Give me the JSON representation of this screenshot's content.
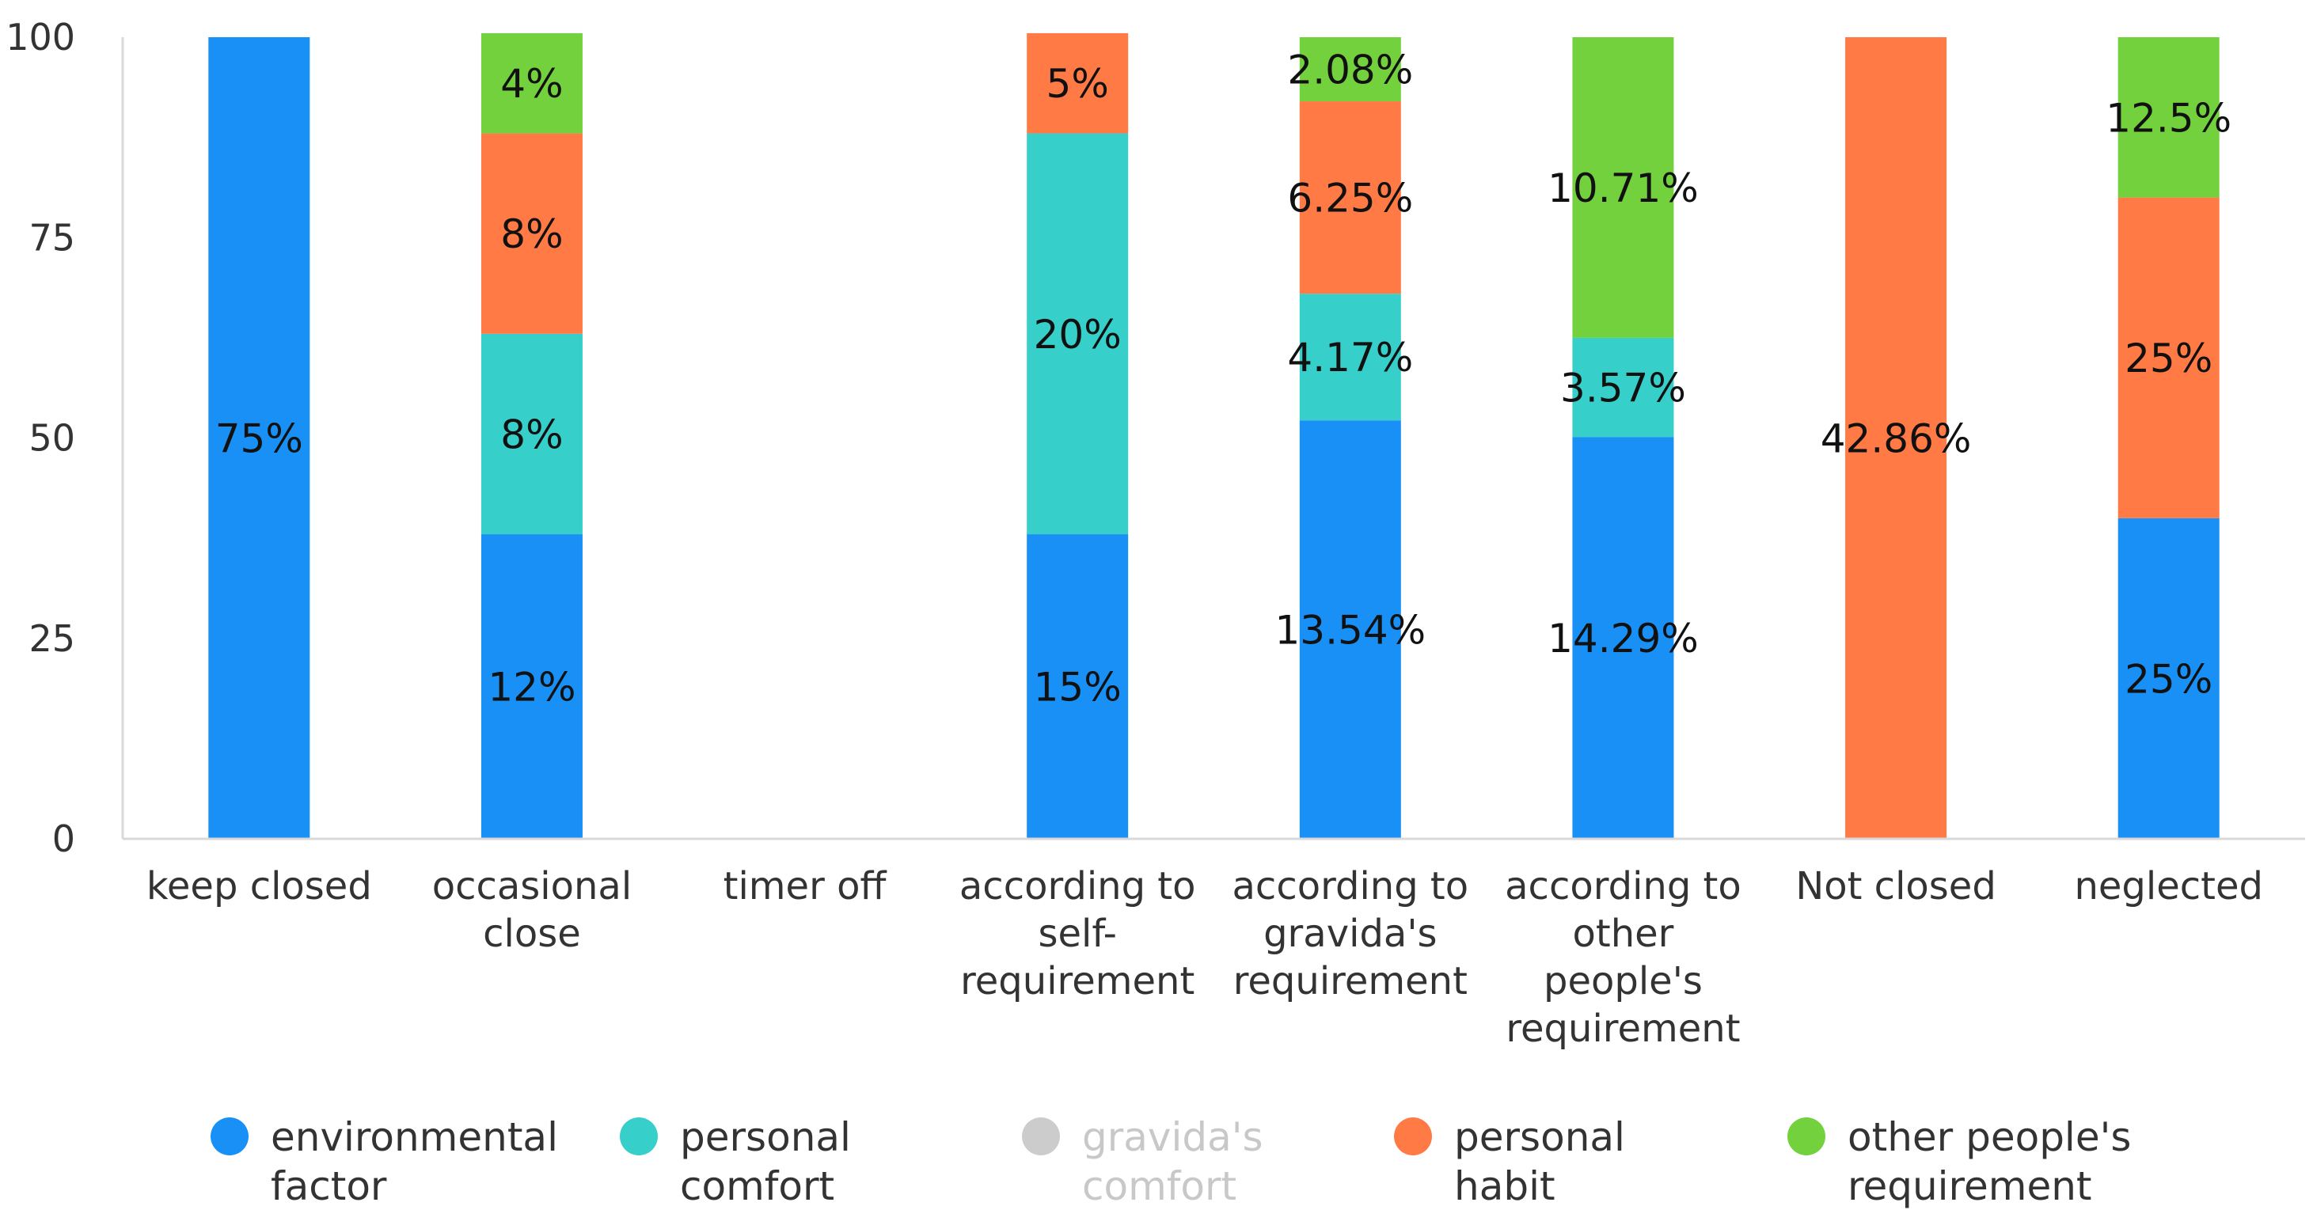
{
  "chart_data": {
    "type": "bar",
    "stacked": true,
    "categories": [
      [
        "keep closed"
      ],
      [
        "occasional",
        "close"
      ],
      [
        "timer off"
      ],
      [
        "according to",
        "self-",
        "requirement"
      ],
      [
        "according to",
        "gravida's",
        "requirement"
      ],
      [
        "according to",
        "other",
        "people's",
        "requirement"
      ],
      [
        "Not closed"
      ],
      [
        "neglected"
      ]
    ],
    "ylim": [
      0,
      100
    ],
    "yticks": [
      0,
      25,
      50,
      75,
      100
    ],
    "grid": false,
    "legend_position": "bottom",
    "series": [
      {
        "name": [
          "environmental",
          "factor"
        ],
        "color": "#1890F5",
        "enabled": true,
        "values": [
          100,
          38,
          0,
          38,
          52.2,
          50.1,
          0,
          40
        ],
        "labels": [
          "75%",
          "12%",
          "",
          "15%",
          "13.54%",
          "14.29%",
          "",
          "25%"
        ]
      },
      {
        "name": [
          "personal",
          "comfort"
        ],
        "color": "#36CFC9",
        "enabled": true,
        "values": [
          0,
          25,
          0,
          50,
          15.8,
          12.4,
          0,
          0
        ],
        "labels": [
          "",
          "8%",
          "",
          "20%",
          "4.17%",
          "3.57%",
          "",
          ""
        ]
      },
      {
        "name": [
          "gravida's",
          "comfort"
        ],
        "color": "#CCCCCC",
        "enabled": false,
        "values": [
          0,
          0,
          0,
          0,
          0,
          0,
          0,
          0
        ],
        "labels": [
          "",
          "",
          "",
          "",
          "",
          "",
          "",
          ""
        ]
      },
      {
        "name": [
          "personal",
          "habit"
        ],
        "color": "#FF7A45",
        "enabled": true,
        "values": [
          0,
          25,
          0,
          12.5,
          24,
          0,
          100,
          40
        ],
        "labels": [
          "",
          "8%",
          "",
          "5%",
          "6.25%",
          "",
          "42.86%",
          "25%"
        ]
      },
      {
        "name": [
          "other people's",
          "requirement"
        ],
        "color": "#73D13D",
        "enabled": true,
        "values": [
          0,
          12.5,
          0,
          0,
          8,
          37.5,
          0,
          20
        ],
        "labels": [
          "",
          "4%",
          "",
          "",
          "2.08%",
          "10.71%",
          "",
          "12.5%"
        ]
      }
    ]
  }
}
